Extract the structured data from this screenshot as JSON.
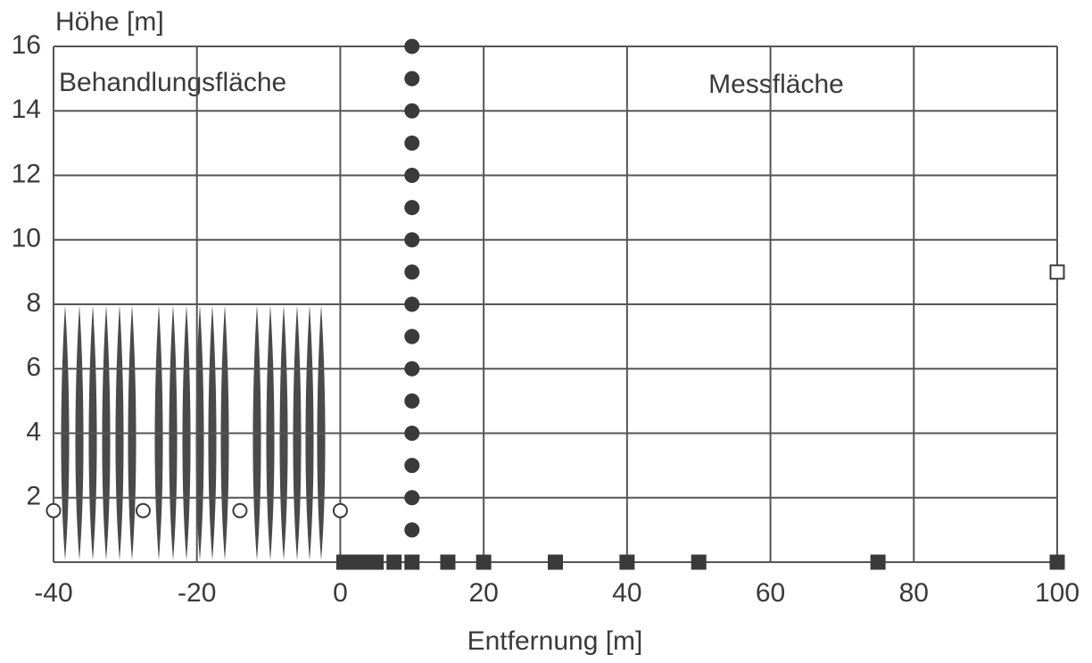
{
  "chart_data": {
    "type": "scatter",
    "y_label": "Höhe [m]",
    "x_label": "Entfernung [m]",
    "annotations": [
      "Behandlungsfläche",
      "Messfläche"
    ],
    "xlim": [
      -40,
      100
    ],
    "xticks": [
      -40,
      -20,
      0,
      20,
      40,
      60,
      80,
      100
    ],
    "ylim": [
      0,
      16
    ],
    "yticks": [
      2,
      4,
      6,
      8,
      10,
      12,
      14,
      16
    ],
    "grid": true,
    "series": [
      {
        "marker": "circle",
        "filled": true,
        "color": "#3a3a3a",
        "x": [
          10,
          10,
          10,
          10,
          10,
          10,
          10,
          10,
          10,
          10,
          10,
          10,
          10,
          10,
          10,
          10
        ],
        "values": [
          1,
          2,
          3,
          4,
          5,
          6,
          7,
          8,
          9,
          10,
          11,
          12,
          13,
          14,
          15,
          16
        ]
      },
      {
        "marker": "square",
        "filled": true,
        "color": "#3a3a3a",
        "x": [
          0.5,
          2,
          3.5,
          5,
          7.5,
          10,
          15,
          20,
          30,
          40,
          50,
          75,
          100
        ],
        "values": [
          0,
          0,
          0,
          0,
          0,
          0,
          0,
          0,
          0,
          0,
          0,
          0,
          0
        ]
      },
      {
        "marker": "circle",
        "filled": false,
        "color": "#3a3a3a",
        "x": [
          -40,
          -27.5,
          -14,
          0
        ],
        "values": [
          1.6,
          1.6,
          1.6,
          1.6
        ]
      },
      {
        "marker": "square",
        "filled": false,
        "color": "#3a3a3a",
        "x": [
          100
        ],
        "values": [
          9
        ]
      }
    ]
  }
}
